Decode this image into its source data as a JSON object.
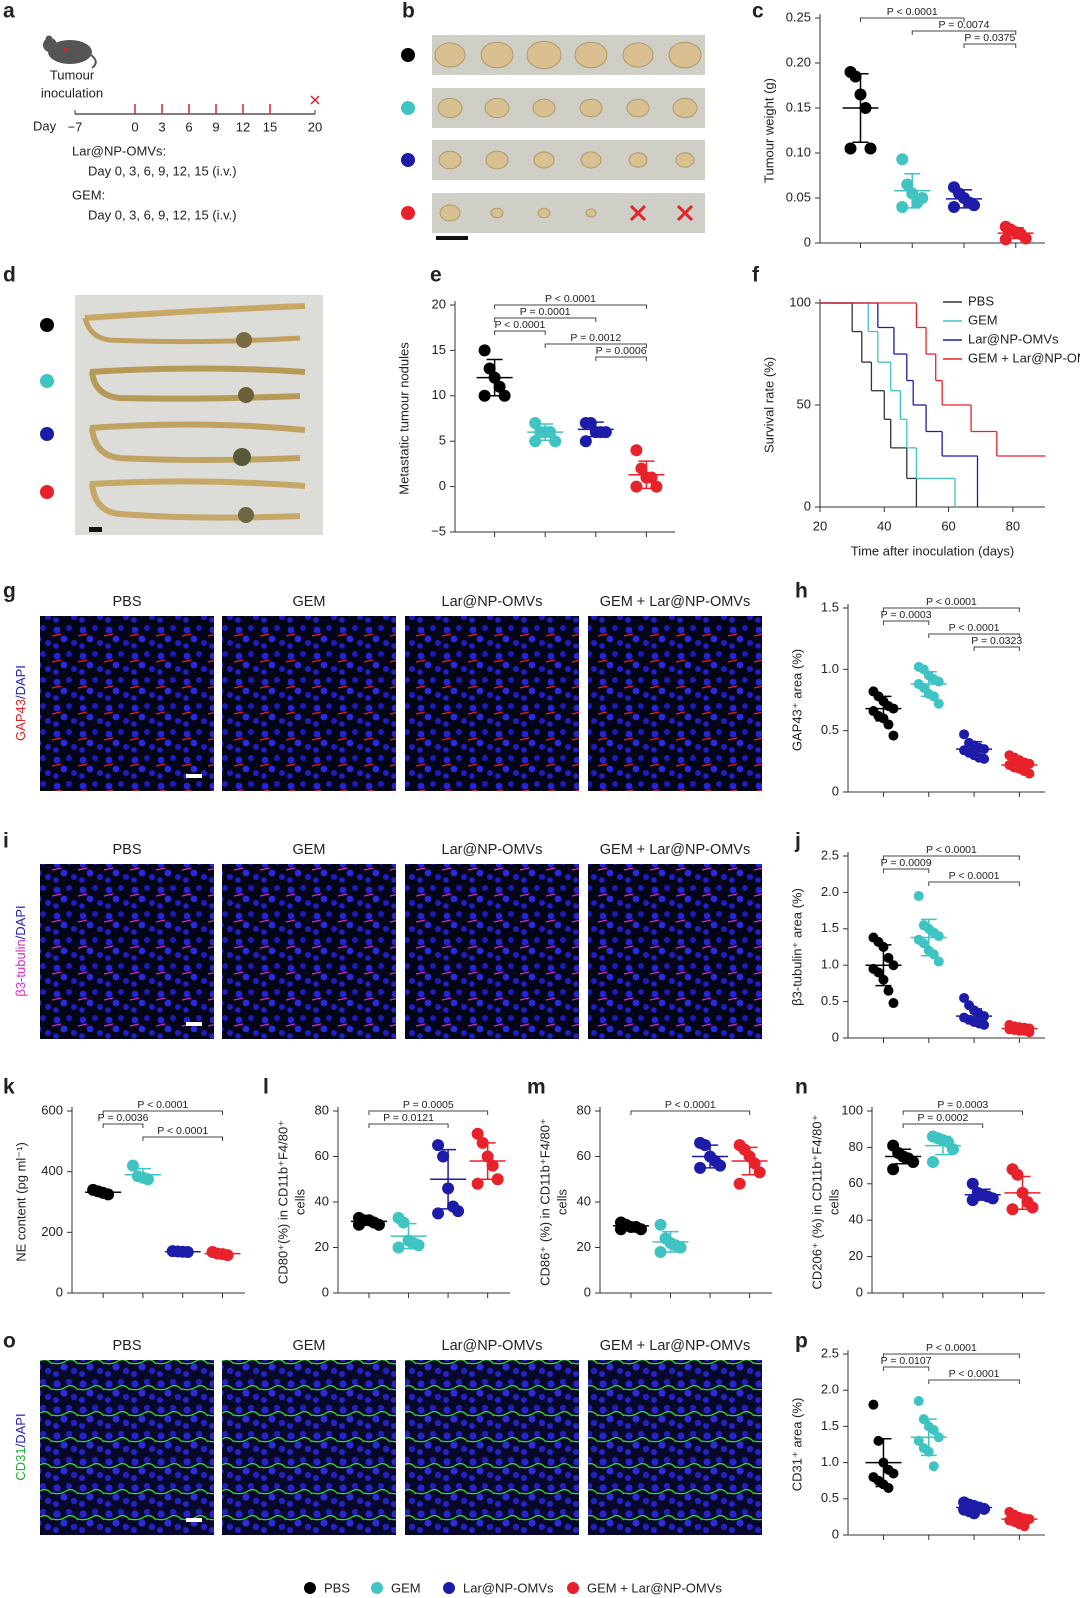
{
  "panels": [
    "a",
    "b",
    "c",
    "d",
    "e",
    "f",
    "g",
    "h",
    "i",
    "j",
    "k",
    "l",
    "m",
    "n",
    "o",
    "p"
  ],
  "legend": [
    {
      "name": "PBS",
      "color": "#000000"
    },
    {
      "name": "GEM",
      "color": "#3fc3c3"
    },
    {
      "name": "Lar@NP-OMVs",
      "color": "#1c1ca8"
    },
    {
      "name": "GEM + Lar@NP-OMVs",
      "color": "#e8222a"
    }
  ],
  "schematic": {
    "title": [
      "Tumour",
      "inoculation"
    ],
    "day_label": "Day",
    "days": [
      {
        "value": -7,
        "label": "−7"
      },
      0,
      3,
      6,
      9,
      12,
      15,
      20
    ],
    "regimens": [
      {
        "name": "Lar@NP-OMVs:",
        "schedule": "Day 0, 3, 6, 9, 12, 15 (i.v.)"
      },
      {
        "name": "GEM:",
        "schedule": "Day 0, 3, 6, 9, 12, 15 (i.v.)"
      }
    ]
  },
  "image_columns": [
    "PBS",
    "GEM",
    "Lar@NP-OMVs",
    "GEM + Lar@NP-OMVs"
  ],
  "stains": [
    {
      "marker": "GAP43",
      "counterstain": "/DAPI"
    },
    {
      "marker": "β3-tubulin",
      "counterstain": "/DAPI"
    },
    {
      "marker": "CD31",
      "counterstain": "/DAPI"
    }
  ],
  "chart_data": [
    {
      "type": "dot",
      "ylabel": "Tumour weight (g)",
      "ylim": [
        0,
        0.25
      ],
      "yticks": [
        0,
        0.05,
        {
          "value": 0.1,
          "label": "0.10"
        },
        0.15,
        {
          "value": 0.2,
          "label": "0.20"
        },
        0.25
      ],
      "groups": [
        {
          "values": [
            0.19,
            0.185,
            0.165,
            0.15,
            0.105,
            0.105
          ],
          "mean": 0.15,
          "sd": 0.038
        },
        {
          "values": [
            0.093,
            0.065,
            0.055,
            0.045,
            0.05,
            0.04
          ],
          "mean": 0.058,
          "sd": 0.019
        },
        {
          "values": [
            0.062,
            0.055,
            0.05,
            0.045,
            0.042,
            0.04
          ],
          "mean": 0.049,
          "sd": 0.01
        },
        {
          "values": [
            0.018,
            0.015,
            0.012,
            0.01,
            0.005,
            0.004
          ],
          "mean": 0.011,
          "sd": 0.006
        }
      ],
      "annotations": [
        {
          "label": "P < 0.0001",
          "from": 0,
          "to": 2
        },
        {
          "label": "P = 0.0074",
          "from": 1,
          "to": 3
        },
        {
          "label": "P = 0.0375",
          "from": 2,
          "to": 3
        }
      ]
    },
    {
      "type": "dot",
      "ylabel": "Metastatic tumour nodules",
      "ylim": [
        -5,
        20
      ],
      "yticks": [
        {
          "value": -5,
          "label": "−5"
        },
        0,
        5,
        10,
        15,
        20
      ],
      "groups": [
        {
          "values": [
            15,
            13,
            12,
            11,
            10,
            10
          ],
          "mean": 12,
          "sd": 2
        },
        {
          "values": [
            7,
            6,
            6,
            6,
            5,
            5
          ],
          "mean": 6,
          "sd": 0.9
        },
        {
          "values": [
            7,
            7,
            6,
            6,
            6,
            5
          ],
          "mean": 6.3,
          "sd": 0.8
        },
        {
          "values": [
            4,
            2,
            1,
            1,
            0,
            0
          ],
          "mean": 1.3,
          "sd": 1.5
        }
      ],
      "annotations": [
        {
          "label": "P < 0.0001",
          "from": 0,
          "to": 3
        },
        {
          "label": "P = 0.0001",
          "from": 0,
          "to": 2
        },
        {
          "label": "P < 0.0001",
          "from": 0,
          "to": 1
        },
        {
          "label": "P = 0.0012",
          "from": 1,
          "to": 3
        },
        {
          "label": "P = 0.0006",
          "from": 2,
          "to": 3
        }
      ]
    },
    {
      "type": "step",
      "ylabel": "Survival rate (%)",
      "xlabel": "Time after inoculation (days)",
      "xlim": [
        20,
        90
      ],
      "xticks": [
        20,
        40,
        60,
        80
      ],
      "ylim": [
        0,
        100
      ],
      "yticks": [
        0,
        50,
        100
      ],
      "series": [
        {
          "name": "PBS",
          "color": "#333333",
          "x": [
            20,
            30,
            33,
            36,
            40,
            42,
            47,
            50
          ],
          "values": [
            100,
            86,
            71,
            57,
            43,
            29,
            14,
            0
          ]
        },
        {
          "name": "GEM",
          "color": "#3fc3c3",
          "x": [
            20,
            35,
            38,
            42,
            45,
            47,
            50,
            62
          ],
          "values": [
            100,
            86,
            71,
            57,
            43,
            29,
            14,
            0
          ]
        },
        {
          "name": "Lar@NP-OMVs",
          "color": "#1c1ca8",
          "x": [
            20,
            38,
            43,
            47,
            49,
            53,
            58,
            69
          ],
          "values": [
            100,
            88,
            75,
            62,
            50,
            37,
            25,
            0
          ]
        },
        {
          "name": "GEM + Lar@NP-OMVs",
          "color": "#e8222a",
          "x": [
            20,
            50,
            53,
            56,
            58,
            67,
            75,
            90
          ],
          "values": [
            100,
            88,
            75,
            62,
            50,
            37,
            25,
            25
          ]
        }
      ]
    },
    {
      "type": "dot",
      "ylabel": "GAP43⁺ area (%)",
      "ylim": [
        0,
        1.5
      ],
      "yticks": [
        0,
        0.5,
        {
          "value": 1,
          "label": "1.0"
        },
        1.5
      ],
      "groups": [
        {
          "values": [
            0.82,
            0.78,
            0.74,
            0.7,
            0.68,
            0.66,
            0.62,
            0.6,
            0.55,
            0.46
          ],
          "mean": 0.68,
          "sd": 0.1
        },
        {
          "values": [
            1.02,
            1.0,
            0.95,
            0.92,
            0.9,
            0.88,
            0.85,
            0.8,
            0.78,
            0.72
          ],
          "mean": 0.88,
          "sd": 0.1
        },
        {
          "values": [
            0.47,
            0.4,
            0.38,
            0.36,
            0.35,
            0.34,
            0.32,
            0.3,
            0.28,
            0.27
          ],
          "mean": 0.35,
          "sd": 0.06
        },
        {
          "values": [
            0.3,
            0.28,
            0.26,
            0.24,
            0.23,
            0.22,
            0.2,
            0.19,
            0.17,
            0.15
          ],
          "mean": 0.22,
          "sd": 0.05
        }
      ],
      "annotations": [
        {
          "label": "P < 0.0001",
          "from": 0,
          "to": 3
        },
        {
          "label": "P = 0.0003",
          "from": 0,
          "to": 1
        },
        {
          "label": "P < 0.0001",
          "from": 1,
          "to": 3
        },
        {
          "label": "P = 0.0323",
          "from": 2,
          "to": 3
        }
      ]
    },
    {
      "type": "dot",
      "ylabel": "β3-tubulin⁺ area (%)",
      "ylim": [
        0,
        2.5
      ],
      "yticks": [
        0,
        0.5,
        {
          "value": 1,
          "label": "1.0"
        },
        1.5,
        {
          "value": 2,
          "label": "2.0"
        },
        2.5
      ],
      "groups": [
        {
          "values": [
            1.38,
            1.32,
            1.25,
            1.1,
            1.0,
            0.95,
            0.9,
            0.8,
            0.65,
            0.48
          ],
          "mean": 1.0,
          "sd": 0.28
        },
        {
          "values": [
            1.95,
            1.55,
            1.5,
            1.45,
            1.4,
            1.35,
            1.3,
            1.2,
            1.15,
            1.05
          ],
          "mean": 1.38,
          "sd": 0.25
        },
        {
          "values": [
            0.55,
            0.45,
            0.38,
            0.33,
            0.3,
            0.28,
            0.25,
            0.22,
            0.2,
            0.18
          ],
          "mean": 0.3,
          "sd": 0.1
        },
        {
          "values": [
            0.18,
            0.16,
            0.15,
            0.14,
            0.13,
            0.12,
            0.11,
            0.1,
            0.1,
            0.08
          ],
          "mean": 0.13,
          "sd": 0.03
        }
      ],
      "annotations": [
        {
          "label": "P < 0.0001",
          "from": 0,
          "to": 3
        },
        {
          "label": "P = 0.0009",
          "from": 0,
          "to": 1
        },
        {
          "label": "P < 0.0001",
          "from": 1,
          "to": 3
        }
      ]
    },
    {
      "type": "dot",
      "ylabel": "NE content (pg ml⁻¹)",
      "ylim": [
        0,
        600
      ],
      "yticks": [
        0,
        200,
        400,
        600
      ],
      "groups": [
        {
          "values": [
            340,
            335,
            330,
            325
          ],
          "mean": 332,
          "sd": 7
        },
        {
          "values": [
            420,
            385,
            380,
            375
          ],
          "mean": 390,
          "sd": 20
        },
        {
          "values": [
            138,
            137,
            136,
            135
          ],
          "mean": 136,
          "sd": 1.5
        },
        {
          "values": [
            135,
            130,
            128,
            125
          ],
          "mean": 130,
          "sd": 5
        }
      ],
      "annotations": [
        {
          "label": "P < 0.0001",
          "from": 0,
          "to": 3
        },
        {
          "label": "P = 0.0036",
          "from": 0,
          "to": 1
        },
        {
          "label": "P < 0.0001",
          "from": 1,
          "to": 3
        }
      ]
    },
    {
      "type": "dot",
      "ylabel": [
        "CD80⁺(%) in CD11b⁺F4/80⁺",
        "cells"
      ],
      "ylim": [
        0,
        80
      ],
      "yticks": [
        0,
        20,
        40,
        60,
        80
      ],
      "groups": [
        {
          "values": [
            33,
            32,
            32,
            31,
            30,
            30
          ],
          "mean": 31.5,
          "sd": 1.2
        },
        {
          "values": [
            33,
            31,
            23,
            22,
            21,
            20
          ],
          "mean": 25,
          "sd": 5.5
        },
        {
          "values": [
            65,
            60,
            46,
            38,
            36,
            35
          ],
          "mean": 50,
          "sd": 13
        },
        {
          "values": [
            70,
            66,
            60,
            56,
            50,
            48
          ],
          "mean": 58,
          "sd": 8
        }
      ],
      "annotations": [
        {
          "label": "P = 0.0005",
          "from": 0,
          "to": 3
        },
        {
          "label": "P = 0.0121",
          "from": 0,
          "to": 2
        }
      ]
    },
    {
      "type": "dot",
      "ylabel": [
        "CD86⁺ (%) in CD11b⁺F4/80⁺",
        "cells"
      ],
      "ylim": [
        0,
        80
      ],
      "yticks": [
        0,
        20,
        40,
        60,
        80
      ],
      "groups": [
        {
          "values": [
            31,
            30,
            29,
            29,
            28,
            28
          ],
          "mean": 29.5,
          "sd": 1.2
        },
        {
          "values": [
            30,
            24,
            22,
            21,
            20,
            18
          ],
          "mean": 22.5,
          "sd": 4.5
        },
        {
          "values": [
            66,
            65,
            60,
            58,
            56,
            55
          ],
          "mean": 60,
          "sd": 5
        },
        {
          "values": [
            65,
            63,
            60,
            57,
            53,
            48
          ],
          "mean": 58,
          "sd": 6
        }
      ],
      "annotations": [
        {
          "label": "P < 0.0001",
          "from": 0,
          "to": 3
        }
      ]
    },
    {
      "type": "dot",
      "ylabel": [
        "CD206⁺ (%) in CD11b⁺F4/80⁺",
        "cells"
      ],
      "ylim": [
        0,
        100
      ],
      "yticks": [
        0,
        20,
        40,
        60,
        80,
        100
      ],
      "groups": [
        {
          "values": [
            81,
            77,
            75,
            74,
            72,
            68
          ],
          "mean": 75,
          "sd": 4
        },
        {
          "values": [
            86,
            85,
            84,
            83,
            79,
            72
          ],
          "mean": 81,
          "sd": 5
        },
        {
          "values": [
            60,
            55,
            54,
            53,
            52,
            51
          ],
          "mean": 54,
          "sd": 3
        },
        {
          "values": [
            68,
            65,
            55,
            50,
            47,
            46
          ],
          "mean": 55,
          "sd": 9
        }
      ],
      "annotations": [
        {
          "label": "P = 0.0003",
          "from": 0,
          "to": 3
        },
        {
          "label": "P = 0.0002",
          "from": 0,
          "to": 2
        }
      ]
    },
    {
      "type": "dot",
      "ylabel": "CD31⁺ area (%)",
      "ylim": [
        0,
        2.5
      ],
      "yticks": [
        0,
        0.5,
        {
          "value": 1,
          "label": "1.0"
        },
        1.5,
        {
          "value": 2,
          "label": "2.0"
        },
        2.5
      ],
      "groups": [
        {
          "values": [
            1.8,
            1.3,
            1.0,
            0.9,
            0.85,
            0.8,
            0.75,
            0.7,
            0.65
          ],
          "mean": 1.0,
          "sd": 0.33
        },
        {
          "values": [
            1.85,
            1.6,
            1.5,
            1.45,
            1.35,
            1.3,
            1.2,
            1.15,
            0.95
          ],
          "mean": 1.35,
          "sd": 0.25
        },
        {
          "values": [
            0.45,
            0.42,
            0.4,
            0.38,
            0.36,
            0.35,
            0.33,
            0.3
          ],
          "mean": 0.38,
          "sd": 0.05
        },
        {
          "values": [
            0.32,
            0.28,
            0.25,
            0.23,
            0.22,
            0.2,
            0.18,
            0.15,
            0.12
          ],
          "mean": 0.22,
          "sd": 0.06
        }
      ],
      "annotations": [
        {
          "label": "P < 0.0001",
          "from": 0,
          "to": 3
        },
        {
          "label": "P = 0.0107",
          "from": 0,
          "to": 1
        },
        {
          "label": "P < 0.0001",
          "from": 1,
          "to": 3
        }
      ]
    }
  ]
}
